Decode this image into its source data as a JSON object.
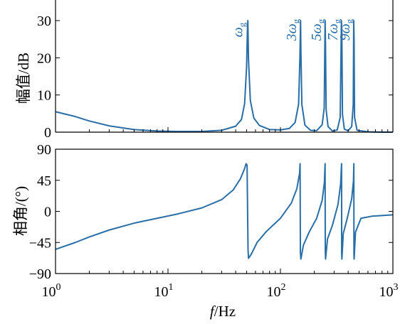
{
  "chart_data": [
    {
      "type": "line",
      "name": "magnitude",
      "x_scale": "log",
      "xlim": [
        1,
        1000
      ],
      "ylim": [
        0,
        35
      ],
      "ylabel": "幅值/dB",
      "yticks": [
        "0",
        "10",
        "20",
        "30"
      ],
      "ytick_values": [
        0,
        10,
        20,
        30
      ],
      "series": [
        {
          "color": "#2a6ea8",
          "x": [
            1,
            1.5,
            2,
            3,
            5,
            8,
            12,
            20,
            30,
            40,
            45,
            48,
            50,
            50.8,
            51.3,
            52,
            54,
            58,
            65,
            80,
            100,
            120,
            135,
            145,
            149,
            151,
            152,
            155,
            165,
            185,
            210,
            235,
            245,
            249.5,
            251.5,
            255,
            265,
            290,
            320,
            340,
            348.5,
            351.5,
            356,
            370,
            400,
            430,
            444,
            448.5,
            451.5,
            456,
            480,
            600,
            800,
            1000
          ],
          "values": [
            5.5,
            4.2,
            3.0,
            1.7,
            0.7,
            0.3,
            0.2,
            0.2,
            0.5,
            1.6,
            3.4,
            7.6,
            17.5,
            27,
            30,
            19.5,
            8.5,
            3.8,
            1.8,
            0.7,
            0.6,
            1.0,
            2.6,
            7.5,
            20,
            30,
            22,
            7.5,
            1.9,
            0.5,
            0.4,
            2.0,
            6.5,
            30,
            24,
            6.0,
            1.5,
            0.3,
            0.6,
            4.0,
            30,
            27,
            4.8,
            0.8,
            0.4,
            1.5,
            7.5,
            30,
            25,
            4.0,
            0.5,
            0.1,
            0.0,
            0.0
          ]
        }
      ],
      "annotations": [
        {
          "base": "ω",
          "sub": "g",
          "x": 50
        },
        {
          "base": "3ω",
          "sub": "g",
          "x": 150
        },
        {
          "base": "5ω",
          "sub": "g",
          "x": 250
        },
        {
          "base": "7ω",
          "sub": "g",
          "x": 350
        },
        {
          "base": "9ω",
          "sub": "g",
          "x": 450
        }
      ]
    },
    {
      "type": "line",
      "name": "phase",
      "x_scale": "log",
      "xlim": [
        1,
        1000
      ],
      "ylim": [
        -90,
        90
      ],
      "xlabel": "f/Hz",
      "ylabel": "相角/(°)",
      "yticks": [
        "90",
        "45",
        "0",
        "−45",
        "−90"
      ],
      "ytick_values": [
        90,
        45,
        0,
        -45,
        -90
      ],
      "xticks": [
        {
          "base": "10",
          "exp": "0",
          "value": 1
        },
        {
          "base": "10",
          "exp": "1",
          "value": 10
        },
        {
          "base": "10",
          "exp": "2",
          "value": 100
        },
        {
          "base": "10",
          "exp": "3",
          "value": 1000
        }
      ],
      "series": [
        {
          "color": "#2a6ea8",
          "x": [
            1,
            1.5,
            2,
            3,
            5,
            8,
            12,
            20,
            30,
            38,
            44,
            48,
            49.5,
            50.5,
            51.5,
            52,
            55,
            62,
            75,
            100,
            125,
            140,
            148,
            149.5,
            150.5,
            152,
            160,
            180,
            210,
            235,
            246,
            249.5,
            250.5,
            252,
            262,
            290,
            325,
            343,
            349.5,
            350.5,
            352,
            362,
            390,
            430,
            446,
            449.5,
            450.5,
            452,
            465,
            520,
            650,
            1000
          ],
          "values": [
            -55,
            -45,
            -37,
            -27,
            -17,
            -10,
            -4,
            5,
            17,
            31,
            47,
            62,
            69,
            67,
            -55,
            -68,
            -62,
            -45,
            -29,
            -10,
            12,
            33,
            55,
            69,
            -60,
            -69,
            -49,
            -30,
            -10,
            16,
            42,
            69,
            -58,
            -69,
            -40,
            -20,
            10,
            40,
            69,
            -60,
            -69,
            -32,
            -12,
            18,
            44,
            69,
            -62,
            -69,
            -30,
            -10,
            -7,
            -5
          ]
        }
      ]
    }
  ]
}
